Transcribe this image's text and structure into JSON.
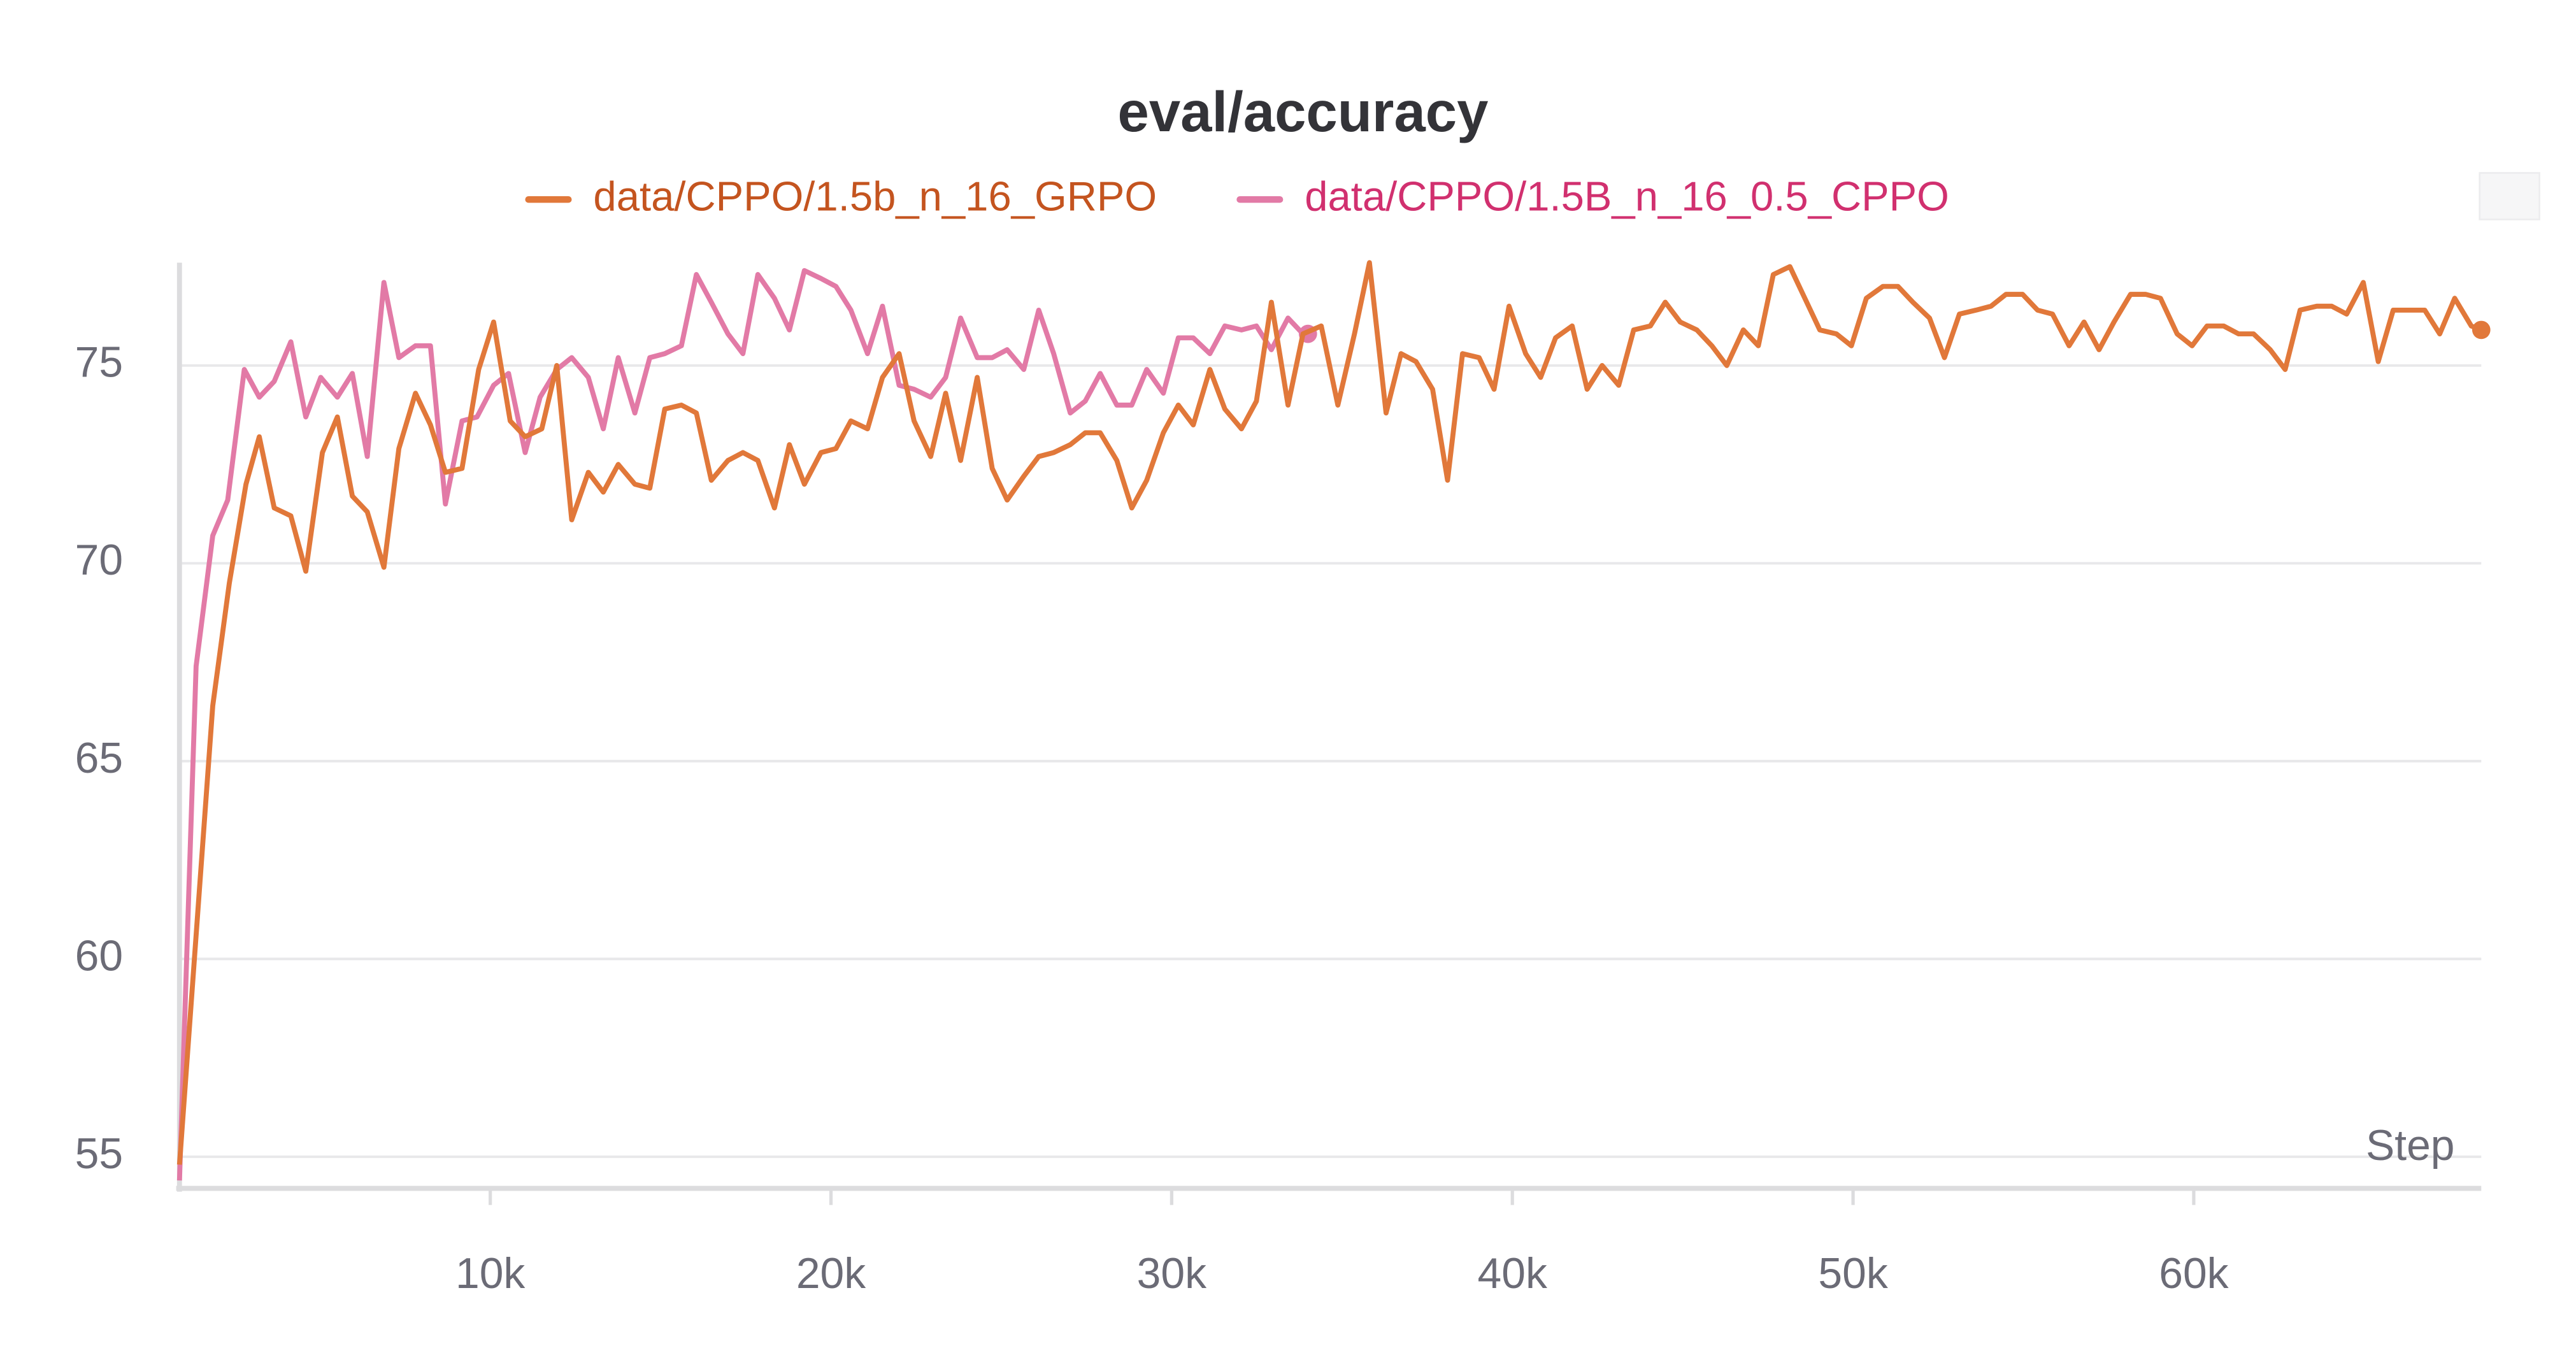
{
  "chart_data": {
    "type": "line",
    "title": "eval/accuracy",
    "x_label": "Step",
    "xlim": [
      878,
      68439
    ],
    "ylim": [
      54.2,
      77.6
    ],
    "xticks": [
      {
        "value": 10000,
        "label": "10k"
      },
      {
        "value": 20000,
        "label": "20k"
      },
      {
        "value": 30000,
        "label": "30k"
      },
      {
        "value": 40000,
        "label": "40k"
      },
      {
        "value": 50000,
        "label": "50k"
      },
      {
        "value": 60000,
        "label": "60k"
      }
    ],
    "yticks": [
      55,
      60,
      65,
      70,
      75
    ],
    "grid": true,
    "series": [
      {
        "name": "data/CPPO/1.5b_n_16_GRPO",
        "color": "#e1783a",
        "label_color": "#c4541f",
        "x": [
          878,
          1854,
          2341,
          2829,
          3220,
          3659,
          4146,
          4585,
          5073,
          5512,
          5951,
          6390,
          6878,
          7317,
          7805,
          8244,
          8683,
          9171,
          9659,
          10098,
          10585,
          11024,
          11512,
          11951,
          12390,
          12878,
          13317,
          13756,
          14244,
          14683,
          15122,
          15610,
          16049,
          16488,
          16976,
          17415,
          17854,
          18341,
          18780,
          19220,
          19707,
          20146,
          20585,
          21073,
          21512,
          22000,
          22439,
          22927,
          23366,
          23805,
          24293,
          24732,
          25171,
          25659,
          26098,
          26537,
          27024,
          27463,
          27902,
          28390,
          28829,
          29268,
          29756,
          30195,
          30634,
          31122,
          31561,
          32049,
          32488,
          32927,
          33415,
          33854,
          34390,
          34878,
          35366,
          35805,
          36293,
          36732,
          37171,
          37659,
          38098,
          38537,
          39024,
          39463,
          39902,
          40390,
          40829,
          41268,
          41756,
          42195,
          42634,
          43122,
          43561,
          44049,
          44488,
          44927,
          45415,
          45854,
          46293,
          46780,
          47220,
          47659,
          48146,
          48585,
          49024,
          49512,
          49951,
          50390,
          50878,
          51317,
          51756,
          52244,
          52683,
          53122,
          53610,
          54049,
          54488,
          54976,
          55415,
          55854,
          56341,
          56780,
          57220,
          57659,
          58146,
          58585,
          59024,
          59512,
          59951,
          60390,
          60878,
          61317,
          61756,
          62244,
          62683,
          63122,
          63610,
          64049,
          64488,
          64976,
          65415,
          65854,
          66293,
          66780,
          67220,
          67659,
          68146,
          68439
        ],
        "values": [
          54.8,
          66.4,
          69.5,
          72.0,
          73.2,
          71.4,
          71.2,
          69.8,
          72.8,
          73.7,
          71.7,
          71.3,
          69.9,
          72.9,
          74.3,
          73.5,
          72.3,
          72.4,
          74.9,
          76.1,
          73.6,
          73.2,
          73.4,
          75.0,
          71.1,
          72.3,
          71.8,
          72.5,
          72.0,
          71.9,
          73.9,
          74.0,
          73.8,
          72.1,
          72.6,
          72.8,
          72.6,
          71.4,
          73.0,
          72.0,
          72.8,
          72.9,
          73.6,
          73.4,
          74.7,
          75.3,
          73.6,
          72.7,
          74.3,
          72.6,
          74.7,
          72.4,
          71.6,
          72.2,
          72.7,
          72.8,
          73.0,
          73.3,
          73.3,
          72.6,
          71.4,
          72.1,
          73.3,
          74.0,
          73.5,
          74.9,
          73.9,
          73.4,
          74.1,
          76.6,
          74.0,
          75.8,
          76.0,
          74.0,
          75.8,
          77.6,
          73.8,
          75.3,
          75.1,
          74.4,
          72.1,
          75.3,
          75.2,
          74.4,
          76.5,
          75.3,
          74.7,
          75.7,
          76.0,
          74.4,
          75.0,
          74.5,
          75.9,
          76.0,
          76.6,
          76.1,
          75.9,
          75.5,
          75.0,
          75.9,
          75.5,
          77.3,
          77.5,
          76.7,
          75.9,
          75.8,
          75.5,
          76.7,
          77.0,
          77.0,
          76.6,
          76.2,
          75.2,
          76.3,
          76.4,
          76.5,
          76.8,
          76.8,
          76.4,
          76.3,
          75.5,
          76.1,
          75.4,
          76.1,
          76.8,
          76.8,
          76.7,
          75.8,
          75.5,
          76.0,
          76.0,
          75.8,
          75.8,
          75.4,
          74.9,
          76.4,
          76.5,
          76.5,
          76.3,
          77.1,
          75.1,
          76.4,
          76.4,
          76.4,
          75.8,
          76.7,
          76.0,
          75.9
        ]
      },
      {
        "name": "data/CPPO/1.5B_n_16_0.5_CPPO",
        "color": "#e27aa6",
        "label_color": "#d1306f",
        "x": [
          878,
          1366,
          1854,
          2293,
          2780,
          3220,
          3659,
          4146,
          4585,
          5024,
          5512,
          5951,
          6390,
          6878,
          7317,
          7805,
          8244,
          8683,
          9171,
          9610,
          10098,
          10537,
          11024,
          11463,
          11951,
          12390,
          12878,
          13317,
          13756,
          14244,
          14683,
          15122,
          15610,
          16049,
          16488,
          16976,
          17415,
          17854,
          18341,
          18780,
          19220,
          19707,
          20146,
          20585,
          21073,
          21512,
          22000,
          22439,
          22927,
          23366,
          23805,
          24293,
          24732,
          25171,
          25659,
          26098,
          26537,
          27024,
          27463,
          27902,
          28390,
          28829,
          29268,
          29756,
          30195,
          30634,
          31122,
          31561,
          32049,
          32488,
          32927,
          33415,
          33854,
          34000
        ],
        "values": [
          54.4,
          67.4,
          70.7,
          71.6,
          74.9,
          74.2,
          74.6,
          75.6,
          73.7,
          74.7,
          74.2,
          74.8,
          72.7,
          77.1,
          75.2,
          75.5,
          75.5,
          71.5,
          73.6,
          73.7,
          74.5,
          74.8,
          72.8,
          74.2,
          74.9,
          75.2,
          74.7,
          73.4,
          75.2,
          73.8,
          75.2,
          75.3,
          75.5,
          77.3,
          76.6,
          75.8,
          75.3,
          77.3,
          76.7,
          75.9,
          77.4,
          77.2,
          77.0,
          76.4,
          75.3,
          76.5,
          74.5,
          74.4,
          74.2,
          74.7,
          76.2,
          75.2,
          75.2,
          75.4,
          74.9,
          76.4,
          75.3,
          73.8,
          74.1,
          74.8,
          74.0,
          74.0,
          74.9,
          74.3,
          75.7,
          75.7,
          75.3,
          76.0,
          75.9,
          76.0,
          75.4,
          76.2,
          75.8,
          75.8
        ]
      }
    ]
  }
}
